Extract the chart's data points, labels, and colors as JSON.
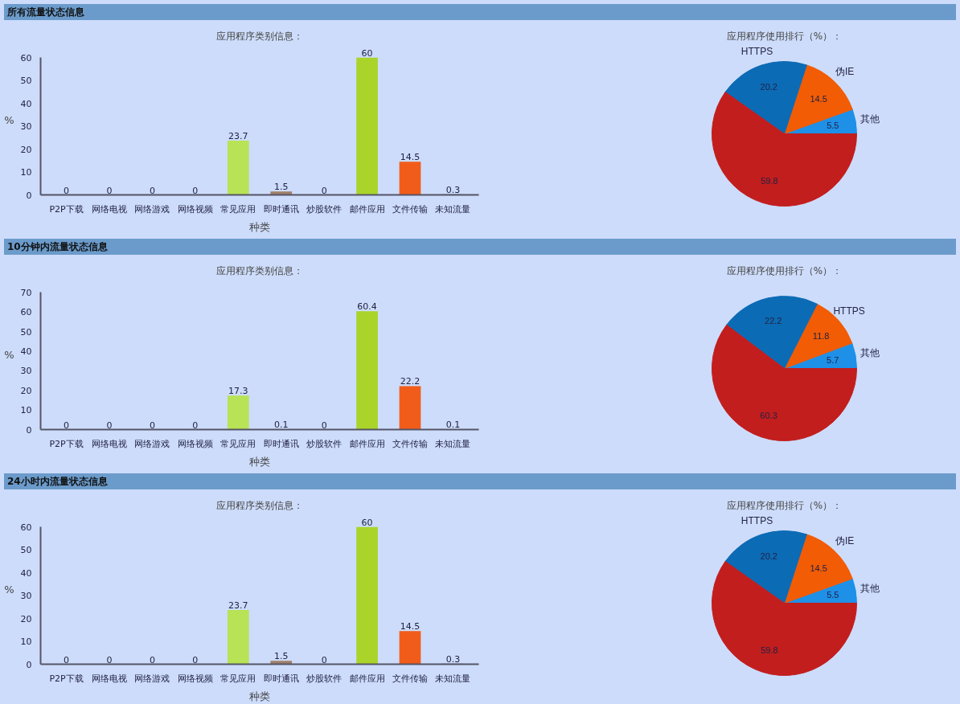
{
  "chart_data": [
    {
      "type": "bar",
      "annotations": [
        "所有流量状态信息"
      ],
      "title": "应用程序类别信息：",
      "xlabel": "种类",
      "ylabel": "%",
      "categories": [
        "P2P下载",
        "网络电视",
        "网络游戏",
        "网络视频",
        "常见应用",
        "即时通讯",
        "炒股软件",
        "邮件应用",
        "文件传输",
        "未知流量"
      ],
      "values": [
        0,
        0,
        0,
        0,
        23.7,
        1.5,
        0,
        60,
        14.5,
        0.3
      ],
      "colors": [
        "#8090c0",
        "#8090c0",
        "#8090c0",
        "#8090c0",
        "#b8e356",
        "#a0806a",
        "#8090c0",
        "#aad42a",
        "#f25c1a",
        "#8090c0"
      ],
      "ylim": [
        0,
        60
      ],
      "yticks": [
        0,
        10,
        20,
        30,
        40,
        50,
        60
      ],
      "data_labels": true
    },
    {
      "type": "pie",
      "title": "应用程序使用排行（%）：",
      "categories": [
        "其他",
        "伪IE",
        "HTTPS",
        null
      ],
      "values": [
        5.5,
        14.5,
        20.2,
        59.8
      ],
      "colors": [
        "#1e90e8",
        "#f25c05",
        "#0c6bb5",
        "#c21e1e"
      ],
      "data_labels": true
    },
    {
      "type": "bar",
      "annotations": [
        "10分钟内流量状态信息"
      ],
      "title": "应用程序类别信息：",
      "xlabel": "种类",
      "ylabel": "%",
      "categories": [
        "P2P下载",
        "网络电视",
        "网络游戏",
        "网络视频",
        "常见应用",
        "即时通讯",
        "炒股软件",
        "邮件应用",
        "文件传输",
        "未知流量"
      ],
      "values": [
        0,
        0,
        0,
        0,
        17.3,
        0.1,
        0,
        60.4,
        22.2,
        0.1
      ],
      "colors": [
        "#8090c0",
        "#8090c0",
        "#8090c0",
        "#8090c0",
        "#b8e356",
        "#a0806a",
        "#8090c0",
        "#aad42a",
        "#f25c1a",
        "#8090c0"
      ],
      "ylim": [
        0,
        70
      ],
      "yticks": [
        0,
        10,
        20,
        30,
        40,
        50,
        60,
        70
      ],
      "data_labels": true
    },
    {
      "type": "pie",
      "title": "应用程序使用排行（%）：",
      "categories": [
        "其他",
        "HTTPS",
        null,
        null
      ],
      "values": [
        5.7,
        11.8,
        22.2,
        60.3
      ],
      "colors": [
        "#1e90e8",
        "#f25c05",
        "#0c6bb5",
        "#c21e1e"
      ],
      "data_labels": true
    },
    {
      "type": "bar",
      "annotations": [
        "24小时内流量状态信息"
      ],
      "title": "应用程序类别信息：",
      "xlabel": "种类",
      "ylabel": "%",
      "categories": [
        "P2P下载",
        "网络电视",
        "网络游戏",
        "网络视频",
        "常见应用",
        "即时通讯",
        "炒股软件",
        "邮件应用",
        "文件传输",
        "未知流量"
      ],
      "values": [
        0,
        0,
        0,
        0,
        23.7,
        1.5,
        0,
        60,
        14.5,
        0.3
      ],
      "colors": [
        "#8090c0",
        "#8090c0",
        "#8090c0",
        "#8090c0",
        "#b8e356",
        "#a0806a",
        "#8090c0",
        "#aad42a",
        "#f25c1a",
        "#8090c0"
      ],
      "ylim": [
        0,
        60
      ],
      "yticks": [
        0,
        10,
        20,
        30,
        40,
        50,
        60
      ],
      "data_labels": true
    },
    {
      "type": "pie",
      "title": "应用程序使用排行（%）：",
      "categories": [
        "其他",
        "伪IE",
        "HTTPS",
        null
      ],
      "values": [
        5.5,
        14.5,
        20.2,
        59.8
      ],
      "colors": [
        "#1e90e8",
        "#f25c05",
        "#0c6bb5",
        "#c21e1e"
      ],
      "data_labels": true
    }
  ]
}
